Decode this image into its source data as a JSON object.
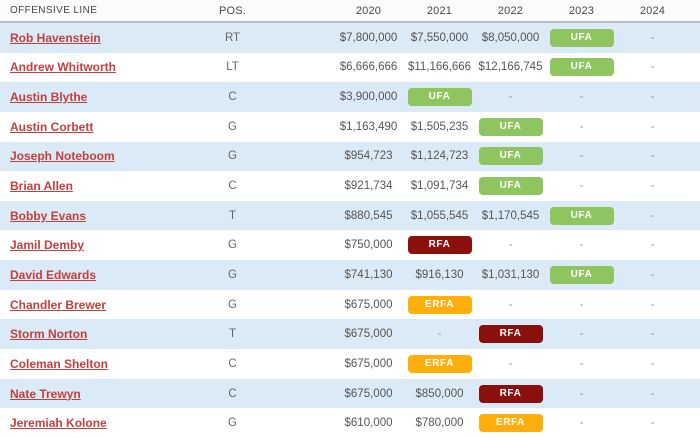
{
  "header": {
    "columns": [
      "OFFENSIVE LINE",
      "POS.",
      "2020",
      "2021",
      "2022",
      "2023",
      "2024"
    ]
  },
  "badges": {
    "ufa": {
      "label": "UFA",
      "color": "#8ec55e"
    },
    "rfa": {
      "label": "RFA",
      "color": "#8b100d"
    },
    "erfa": {
      "label": "ERFA",
      "color": "#ffae0c"
    }
  },
  "colors": {
    "row_alt": "#dbeaf7",
    "link": "#c5403c",
    "header_border": "#bdbdbd",
    "header_bg": "#fbfbfb",
    "money_text": "#555555",
    "dash_text": "#999999"
  },
  "rows": [
    {
      "name": "Rob Havenstein",
      "pos": "RT",
      "cells": [
        {
          "text": "$7,800,000"
        },
        {
          "text": "$7,550,000"
        },
        {
          "text": "$8,050,000"
        },
        {
          "badge": "ufa"
        },
        {
          "text": "-"
        }
      ]
    },
    {
      "name": "Andrew Whitworth",
      "pos": "LT",
      "cells": [
        {
          "text": "$6,666,666"
        },
        {
          "text": "$11,166,666"
        },
        {
          "text": "$12,166,745"
        },
        {
          "badge": "ufa"
        },
        {
          "text": "-"
        }
      ]
    },
    {
      "name": "Austin Blythe",
      "pos": "C",
      "cells": [
        {
          "text": "$3,900,000"
        },
        {
          "badge": "ufa"
        },
        {
          "text": "-"
        },
        {
          "text": "-"
        },
        {
          "text": "-"
        }
      ]
    },
    {
      "name": "Austin Corbett",
      "pos": "G",
      "cells": [
        {
          "text": "$1,163,490"
        },
        {
          "text": "$1,505,235"
        },
        {
          "badge": "ufa"
        },
        {
          "text": "-"
        },
        {
          "text": "-"
        }
      ]
    },
    {
      "name": "Joseph Noteboom",
      "pos": "G",
      "cells": [
        {
          "text": "$954,723"
        },
        {
          "text": "$1,124,723"
        },
        {
          "badge": "ufa"
        },
        {
          "text": "-"
        },
        {
          "text": "-"
        }
      ]
    },
    {
      "name": "Brian Allen",
      "pos": "C",
      "cells": [
        {
          "text": "$921,734"
        },
        {
          "text": "$1,091,734"
        },
        {
          "badge": "ufa"
        },
        {
          "text": "-"
        },
        {
          "text": "-"
        }
      ]
    },
    {
      "name": "Bobby Evans",
      "pos": "T",
      "cells": [
        {
          "text": "$880,545"
        },
        {
          "text": "$1,055,545"
        },
        {
          "text": "$1,170,545"
        },
        {
          "badge": "ufa"
        },
        {
          "text": "-"
        }
      ]
    },
    {
      "name": "Jamil Demby",
      "pos": "G",
      "cells": [
        {
          "text": "$750,000"
        },
        {
          "badge": "rfa"
        },
        {
          "text": "-"
        },
        {
          "text": "-"
        },
        {
          "text": "-"
        }
      ]
    },
    {
      "name": "David Edwards",
      "pos": "G",
      "cells": [
        {
          "text": "$741,130"
        },
        {
          "text": "$916,130"
        },
        {
          "text": "$1,031,130"
        },
        {
          "badge": "ufa"
        },
        {
          "text": "-"
        }
      ]
    },
    {
      "name": "Chandler Brewer",
      "pos": "G",
      "cells": [
        {
          "text": "$675,000"
        },
        {
          "badge": "erfa"
        },
        {
          "text": "-"
        },
        {
          "text": "-"
        },
        {
          "text": "-"
        }
      ]
    },
    {
      "name": "Storm Norton",
      "pos": "T",
      "cells": [
        {
          "text": "$675,000"
        },
        {
          "text": "-"
        },
        {
          "badge": "rfa"
        },
        {
          "text": "-"
        },
        {
          "text": "-"
        }
      ]
    },
    {
      "name": "Coleman Shelton",
      "pos": "C",
      "cells": [
        {
          "text": "$675,000"
        },
        {
          "badge": "erfa"
        },
        {
          "text": "-"
        },
        {
          "text": "-"
        },
        {
          "text": "-"
        }
      ]
    },
    {
      "name": "Nate Trewyn",
      "pos": "C",
      "cells": [
        {
          "text": "$675,000"
        },
        {
          "text": "$850,000"
        },
        {
          "badge": "rfa"
        },
        {
          "text": "-"
        },
        {
          "text": "-"
        }
      ]
    },
    {
      "name": "Jeremiah Kolone",
      "pos": "G",
      "cells": [
        {
          "text": "$610,000"
        },
        {
          "text": "$780,000"
        },
        {
          "badge": "erfa"
        },
        {
          "text": "-"
        },
        {
          "text": "-"
        }
      ]
    }
  ]
}
